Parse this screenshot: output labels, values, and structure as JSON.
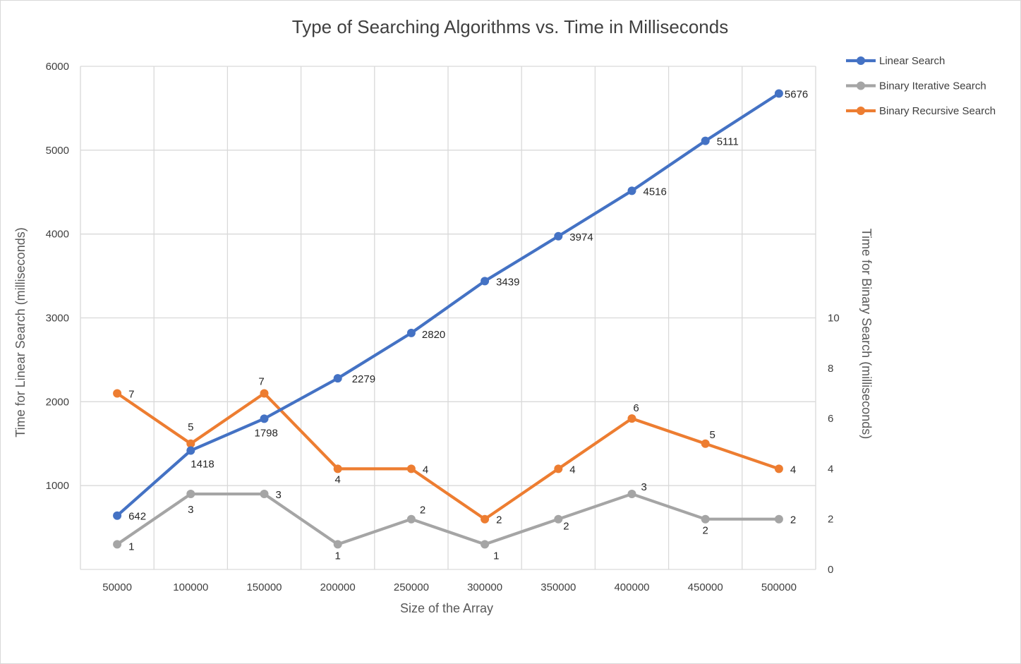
{
  "chart_data": {
    "type": "line",
    "title": "Type of Searching Algorithms vs. Time in Milliseconds",
    "xlabel": "Size of the Array",
    "ylabel": "Time for Linear Search (milliseconds)",
    "y2label": "Time for Binary Search (milliseconds)",
    "categories": [
      "50000",
      "100000",
      "150000",
      "200000",
      "250000",
      "300000",
      "350000",
      "400000",
      "450000",
      "500000"
    ],
    "ylim": [
      0,
      6000
    ],
    "yticks": [
      "",
      "1000",
      "2000",
      "3000",
      "4000",
      "5000",
      "6000"
    ],
    "y2lim": [
      0,
      20
    ],
    "y2ticks": [
      "0",
      "2",
      "4",
      "6",
      "8",
      "10"
    ],
    "grid": true,
    "legend_position": "top-right",
    "series": [
      {
        "name": "Linear Search",
        "axis": "left",
        "color": "#4472C4",
        "values": [
          642,
          1418,
          1798,
          2279,
          2820,
          3439,
          3974,
          4516,
          5111,
          5676
        ]
      },
      {
        "name": "Binary Iterative Search",
        "axis": "right",
        "color": "#A5A5A5",
        "values": [
          1,
          3,
          3,
          1,
          2,
          1,
          2,
          3,
          2,
          2
        ]
      },
      {
        "name": "Binary Recursive Search",
        "axis": "right",
        "color": "#ED7D31",
        "values": [
          7,
          5,
          7,
          4,
          4,
          2,
          4,
          6,
          5,
          4
        ]
      }
    ]
  }
}
